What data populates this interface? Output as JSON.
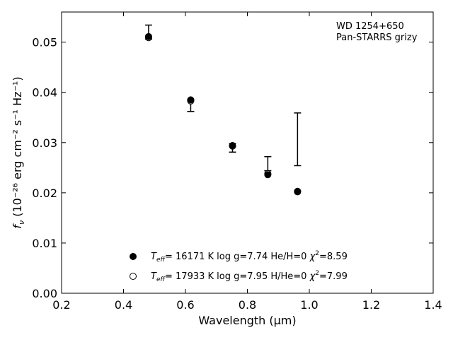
{
  "chart_data": {
    "type": "scatter",
    "title": "",
    "xlabel": "Wavelength (μm)",
    "ylabel_prefix": "f",
    "ylabel_sub": "ν",
    "ylabel_rest": " (10⁻²⁶ erg cm⁻² s⁻¹ Hz⁻¹)",
    "xlim": [
      0.2,
      1.4
    ],
    "ylim": [
      0.0,
      0.056
    ],
    "x_ticks": [
      0.2,
      0.4,
      0.6,
      0.8,
      1.0,
      1.2,
      1.4
    ],
    "x_tick_labels": [
      "0.2",
      "0.4",
      "0.6",
      "0.8",
      "1.0",
      "1.2",
      "1.4"
    ],
    "y_ticks": [
      0.0,
      0.01,
      0.02,
      0.03,
      0.04,
      0.05
    ],
    "y_tick_labels": [
      "0.00",
      "0.01",
      "0.02",
      "0.03",
      "0.04",
      "0.05"
    ],
    "grid": false,
    "annotation": [
      "WD 1254+650",
      "Pan-STARRS grizy"
    ],
    "observed": {
      "x": [
        0.481,
        0.617,
        0.752,
        0.866,
        0.962
      ],
      "y_low": [
        0.0506,
        0.0362,
        0.0281,
        0.0244,
        0.0254
      ],
      "y_high": [
        0.0534,
        0.0385,
        0.0298,
        0.0272,
        0.0359
      ]
    },
    "series": [
      {
        "name": "Teff= 16171 K  log g=7.74  He/H=0  χ²=8.59",
        "name_parts": {
          "T": "T",
          "eff": "eff",
          "rest": "= 16171 K  log g=7.74  He/H=0  ",
          "chi": "χ",
          "sup": "2",
          "end": "=8.59"
        },
        "marker": "filled",
        "x": [
          0.481,
          0.617,
          0.752,
          0.866,
          0.962
        ],
        "y": [
          0.0511,
          0.0385,
          0.0294,
          0.0236,
          0.0202
        ]
      },
      {
        "name": "Teff= 17933 K  log g=7.95  H/He=0  χ²=7.99",
        "name_parts": {
          "T": "T",
          "eff": "eff",
          "rest": "= 17933 K  log g=7.95  H/He=0  ",
          "chi": "χ",
          "sup": "2",
          "end": "=7.99"
        },
        "marker": "open",
        "x": [
          0.481,
          0.617,
          0.752,
          0.866,
          0.962
        ],
        "y": [
          0.0509,
          0.0383,
          0.0293,
          0.0238,
          0.0203
        ]
      }
    ],
    "legend_position": "lower-center"
  }
}
